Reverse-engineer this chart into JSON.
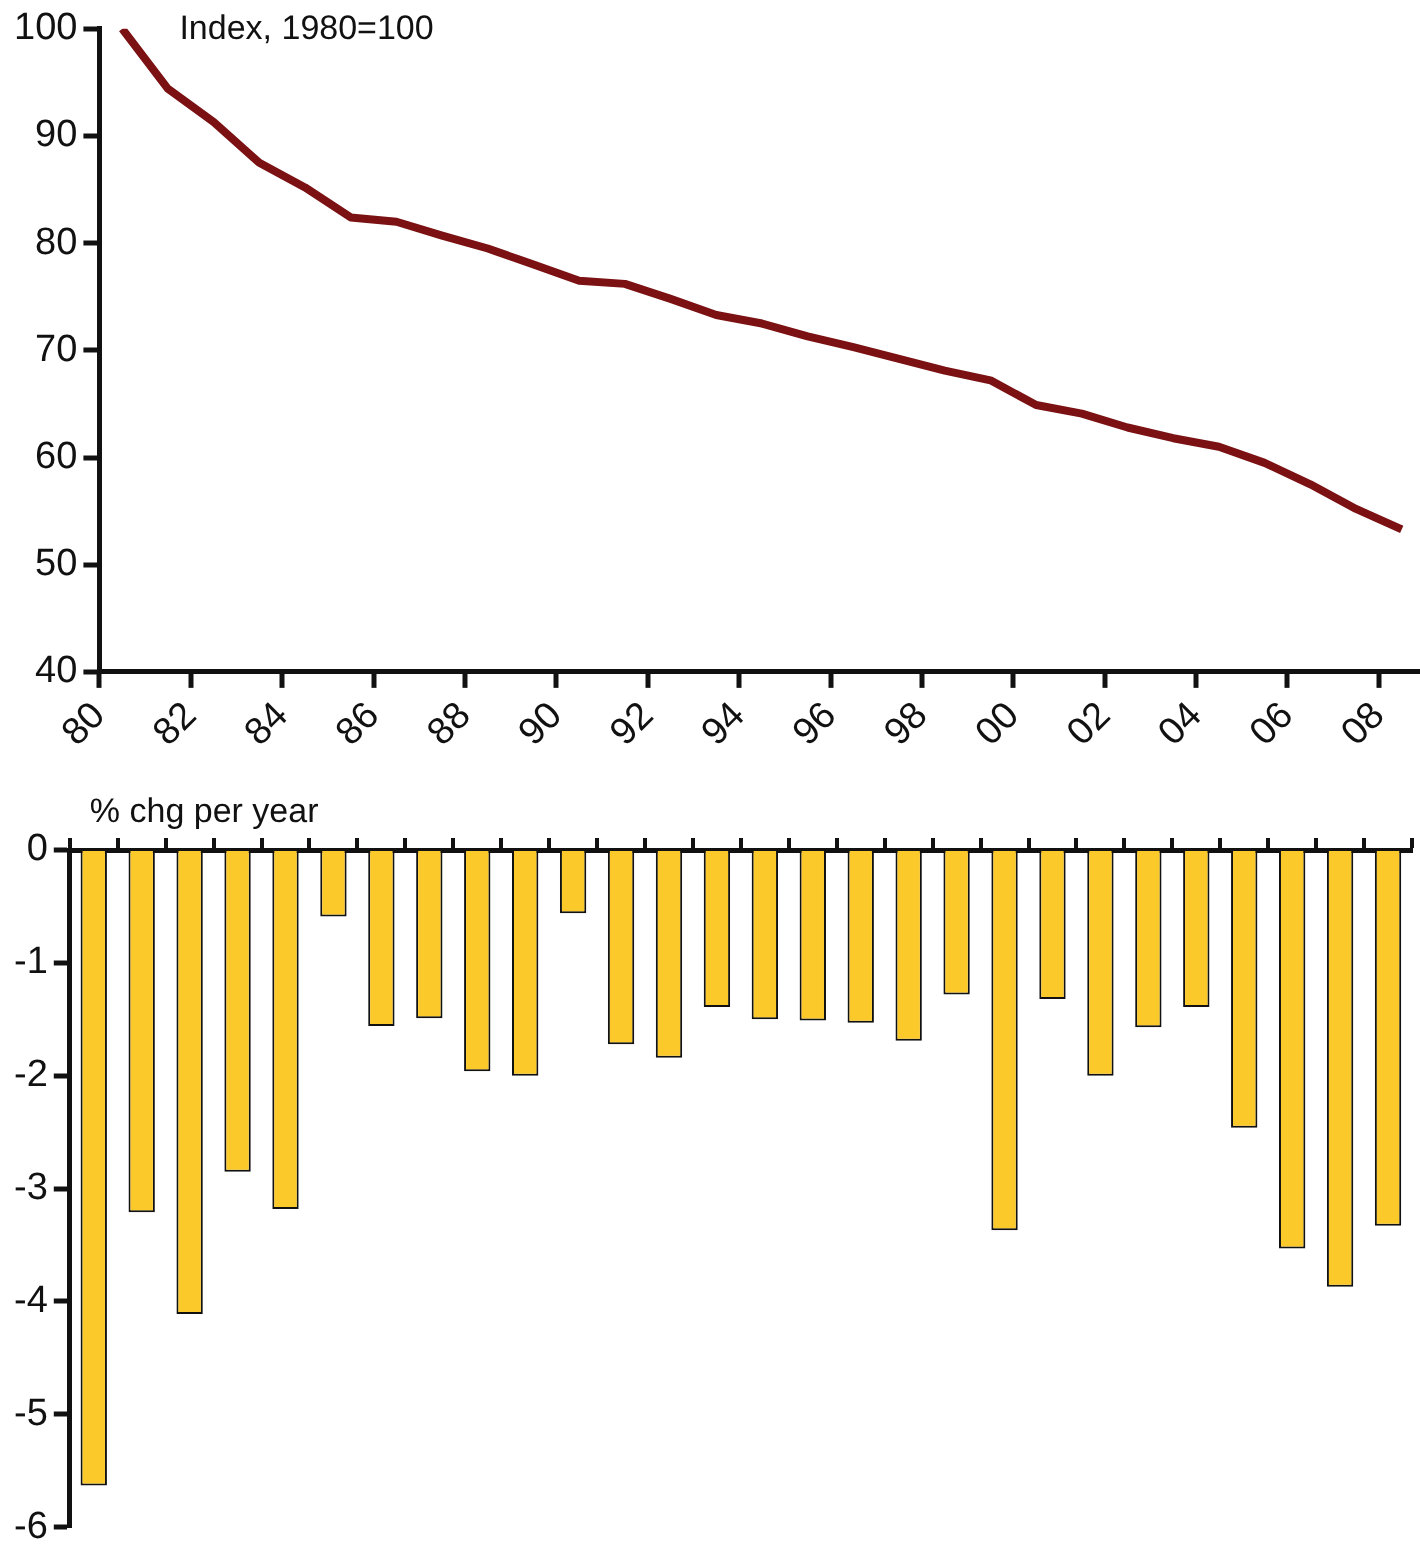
{
  "chart_data": [
    {
      "type": "line",
      "annotations": [
        "Index, 1980=100"
      ],
      "x": [
        1980.5,
        1981.5,
        1982.5,
        1983.5,
        1984.5,
        1985.5,
        1986.5,
        1987.5,
        1988.5,
        1989.5,
        1990.5,
        1991.5,
        1992.5,
        1993.5,
        1994.5,
        1995.5,
        1996.5,
        1997.5,
        1998.5,
        1999.5,
        2000.5,
        2001.5,
        2002.5,
        2003.5,
        2004.5,
        2005.5,
        2006.5,
        2007.5,
        2008.5
      ],
      "series": [
        {
          "color": "#7b1113",
          "values": [
            100,
            94.4,
            91.3,
            87.5,
            85.2,
            82.4,
            82.0,
            80.7,
            79.5,
            78.0,
            76.5,
            76.2,
            74.8,
            73.3,
            72.5,
            71.3,
            70.3,
            69.2,
            68.1,
            67.2,
            64.9,
            64.1,
            62.8,
            61.8,
            61.0,
            59.5,
            57.5,
            55.2,
            53.3
          ]
        }
      ],
      "xlim": [
        1980,
        2008.9
      ],
      "xticks": [
        {
          "value": 1980,
          "label": "80"
        },
        {
          "value": 1982,
          "label": "82"
        },
        {
          "value": 1984,
          "label": "84"
        },
        {
          "value": 1986,
          "label": "86"
        },
        {
          "value": 1988,
          "label": "88"
        },
        {
          "value": 1990,
          "label": "90"
        },
        {
          "value": 1992,
          "label": "92"
        },
        {
          "value": 1994,
          "label": "94"
        },
        {
          "value": 1996,
          "label": "96"
        },
        {
          "value": 1998,
          "label": "98"
        },
        {
          "value": 2000,
          "label": "00"
        },
        {
          "value": 2002,
          "label": "02"
        },
        {
          "value": 2004,
          "label": "04"
        },
        {
          "value": 2006,
          "label": "06"
        },
        {
          "value": 2008,
          "label": "08"
        }
      ],
      "ylim": [
        40,
        100
      ],
      "yticks": [
        40,
        50,
        60,
        70,
        80,
        90,
        100
      ],
      "grid": false,
      "legend": false,
      "marker": "none",
      "line_style": "solid"
    },
    {
      "type": "bar",
      "annotations": [
        "% chg per year"
      ],
      "categories": [
        null,
        null,
        null,
        null,
        null,
        null,
        null,
        null,
        null,
        null,
        null,
        null,
        null,
        null,
        null,
        null,
        null,
        null,
        null,
        null,
        null,
        null,
        null,
        null,
        null,
        null,
        null,
        null
      ],
      "series": [
        {
          "color": "#fcc92a",
          "values": [
            -5.63,
            -3.21,
            -4.11,
            -2.85,
            -3.18,
            -0.59,
            -1.56,
            -1.49,
            -1.96,
            -2.0,
            -0.56,
            -1.72,
            -1.84,
            -1.39,
            -1.5,
            -1.51,
            -1.53,
            -1.69,
            -1.28,
            -3.37,
            -1.32,
            -2.0,
            -1.57,
            -1.39,
            -2.46,
            -3.53,
            -3.87,
            -3.33
          ]
        }
      ],
      "ylim": [
        -6,
        0
      ],
      "yticks": [
        -6,
        -5,
        -4,
        -3,
        -2,
        -1,
        0
      ],
      "grid": false,
      "legend": false,
      "tick_labels": "y"
    }
  ]
}
